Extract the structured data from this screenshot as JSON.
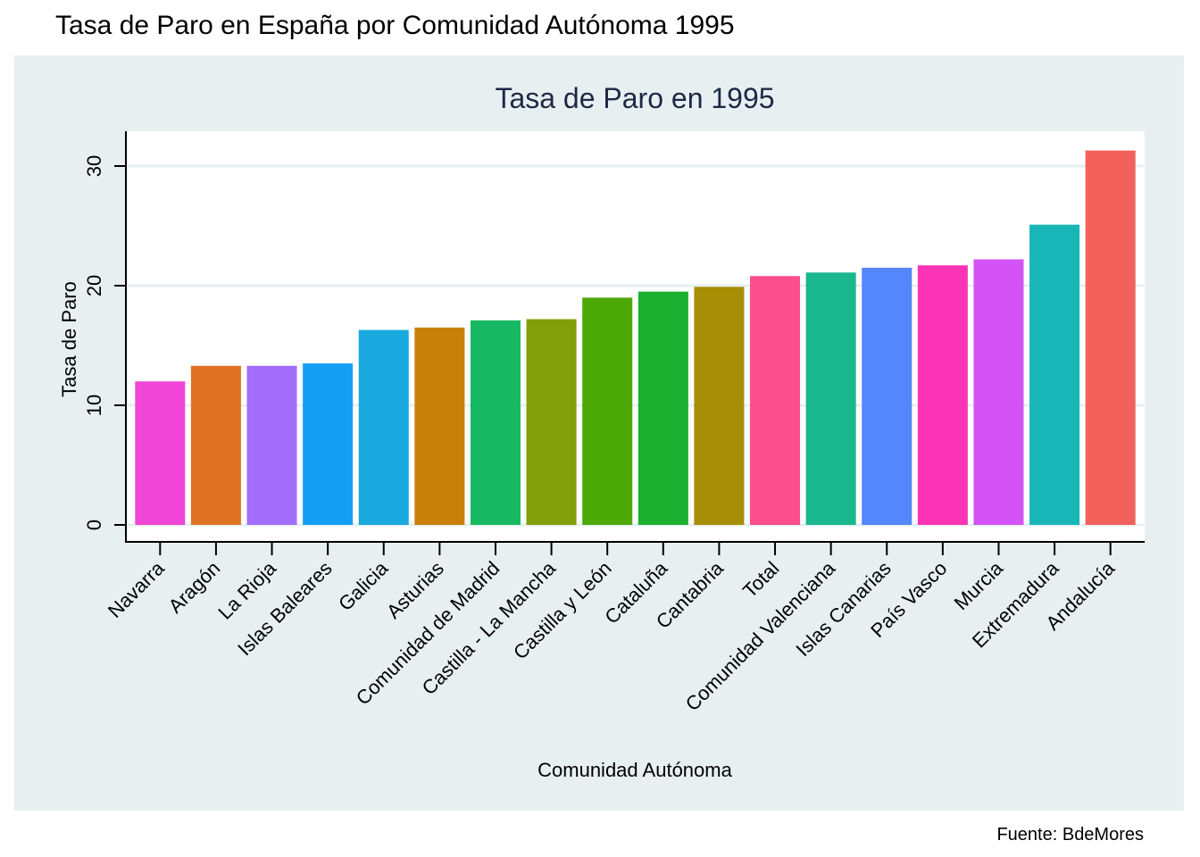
{
  "page": {
    "title": "Tasa de Paro en España por Comunidad Autónoma 1995",
    "caption": "Fuente: BdeMores"
  },
  "chart_data": {
    "type": "bar",
    "title": "Tasa de Paro en 1995",
    "xlabel": "Comunidad Autónoma",
    "ylabel": "Tasa de Paro",
    "ylim": [
      0,
      33
    ],
    "yticks": [
      0,
      10,
      20,
      30
    ],
    "grid": true,
    "legend": "none",
    "categories": [
      "Navarra",
      "Aragón",
      "La Rioja",
      "Islas Baleares",
      "Galicia",
      "Asturias",
      "Comunidad de Madrid",
      "Castilla - La Mancha",
      "Castilla y León",
      "Cataluña",
      "Cantabria",
      "Total",
      "Comunidad Valenciana",
      "Islas Canarias",
      "País Vasco",
      "Murcia",
      "Extremadura",
      "Andalucía"
    ],
    "values": [
      12.0,
      13.3,
      13.3,
      13.5,
      16.3,
      16.5,
      17.1,
      17.2,
      19.0,
      19.5,
      19.9,
      20.8,
      21.1,
      21.5,
      21.7,
      22.2,
      25.1,
      31.3
    ],
    "colors": [
      "#f047d8",
      "#e07323",
      "#a26dfb",
      "#149ff5",
      "#1aa9de",
      "#c98009",
      "#17b963",
      "#849d0a",
      "#4da907",
      "#1bb030",
      "#a68f06",
      "#fc4e8c",
      "#1ab78f",
      "#5486fc",
      "#fb34b6",
      "#d453f7",
      "#19b6b8",
      "#f3615c"
    ]
  },
  "theme": {
    "panel_background": "#e7eff1",
    "plot_background": "#ffffff",
    "grid_color": "#e7eff1",
    "chart_title_color": "#1d2945"
  }
}
